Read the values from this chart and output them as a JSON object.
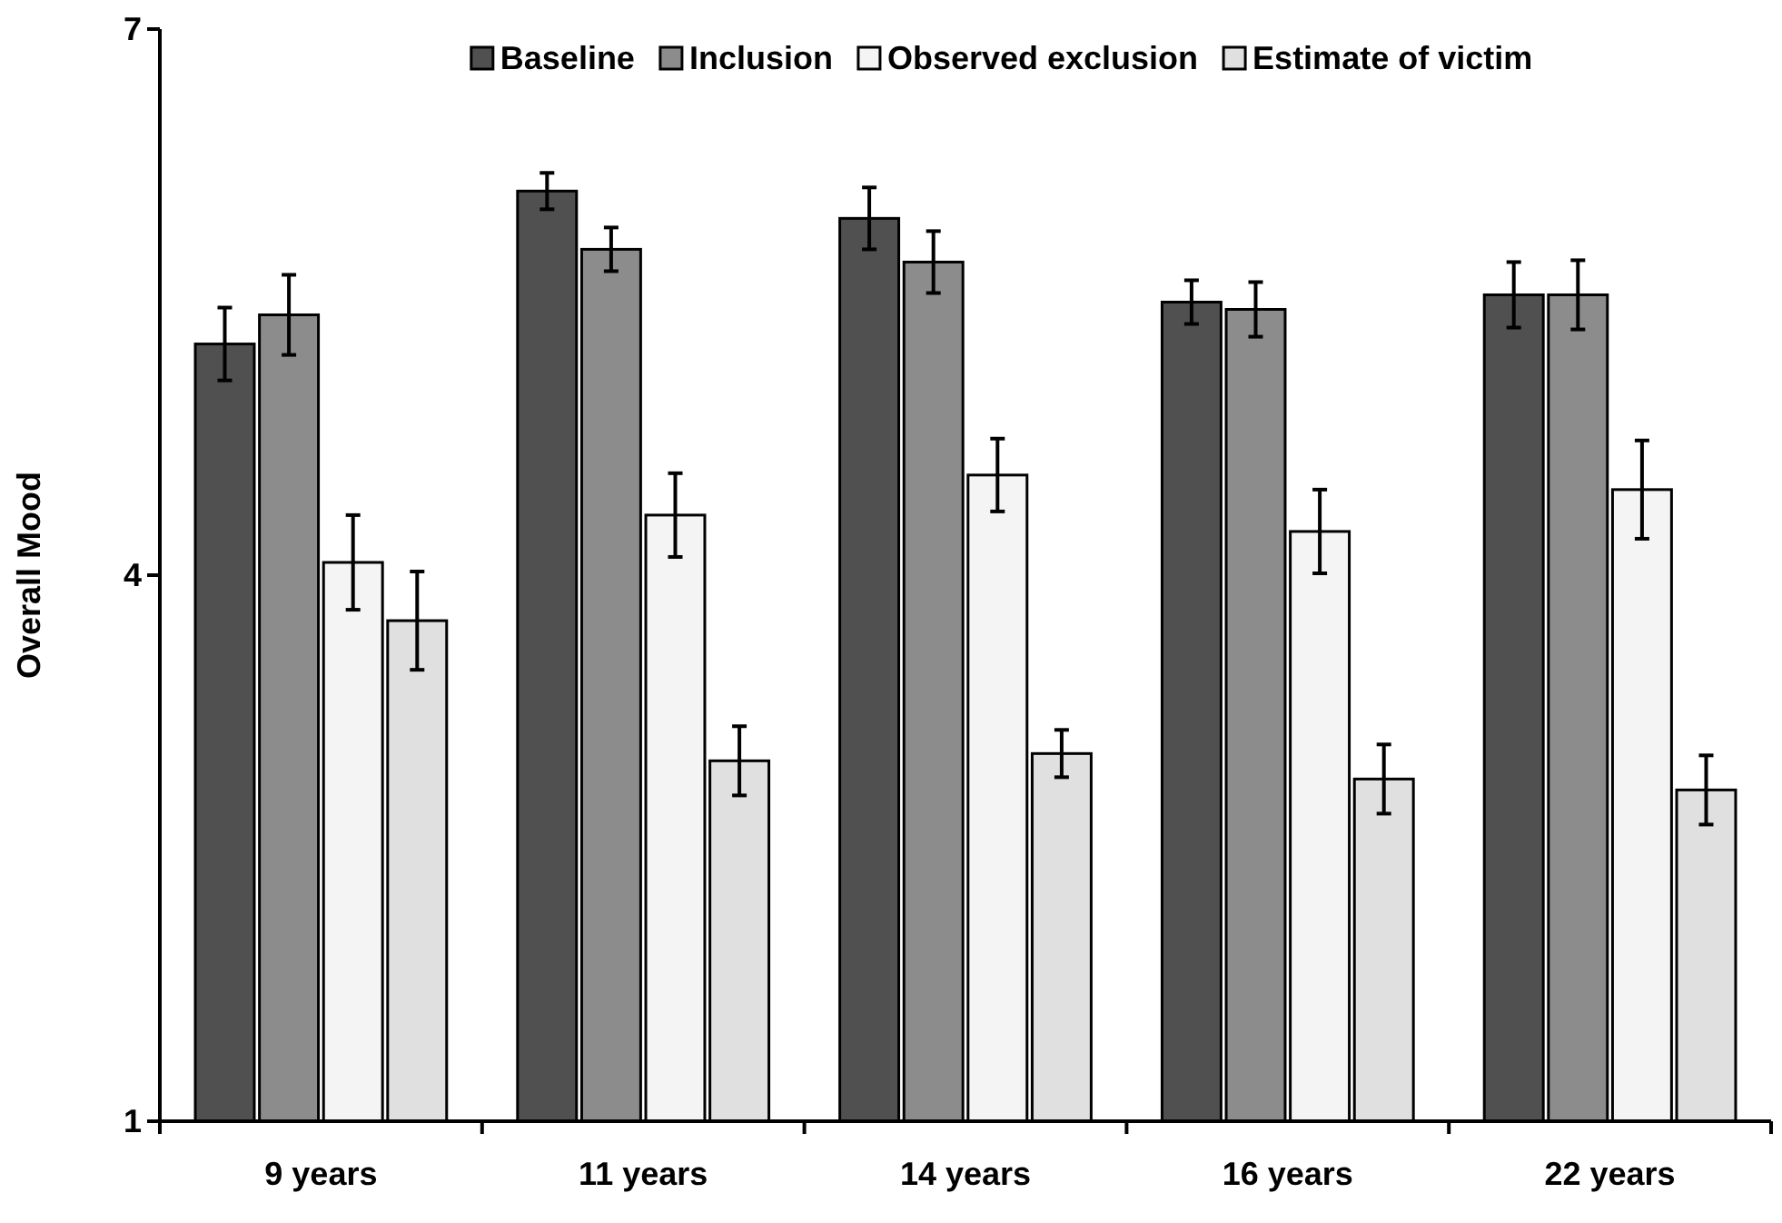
{
  "chart_data": {
    "type": "bar",
    "ylabel": "Overall Mood",
    "categories": [
      "9 years",
      "11 years",
      "14 years",
      "16 years",
      "22 years"
    ],
    "series": [
      {
        "name": "Baseline",
        "color": "#505050",
        "values": [
          5.27,
          6.11,
          5.96,
          5.5,
          5.54
        ],
        "errors": [
          0.2,
          0.1,
          0.17,
          0.12,
          0.18
        ]
      },
      {
        "name": "Inclusion",
        "color": "#8c8c8c",
        "values": [
          5.43,
          5.79,
          5.72,
          5.46,
          5.54
        ],
        "errors": [
          0.22,
          0.12,
          0.17,
          0.15,
          0.19
        ]
      },
      {
        "name": "Observed exclusion",
        "color": "#f4f4f4",
        "values": [
          4.07,
          4.33,
          4.55,
          4.24,
          4.47
        ],
        "errors": [
          0.26,
          0.23,
          0.2,
          0.23,
          0.27
        ]
      },
      {
        "name": "Estimate of victim",
        "color": "#e0e0e0",
        "values": [
          3.75,
          2.98,
          3.02,
          2.88,
          2.82
        ],
        "errors": [
          0.27,
          0.19,
          0.13,
          0.19,
          0.19
        ]
      }
    ],
    "ylim": [
      1,
      7
    ],
    "yticks": [
      1,
      4,
      7
    ],
    "grid": false,
    "legend": "top"
  }
}
